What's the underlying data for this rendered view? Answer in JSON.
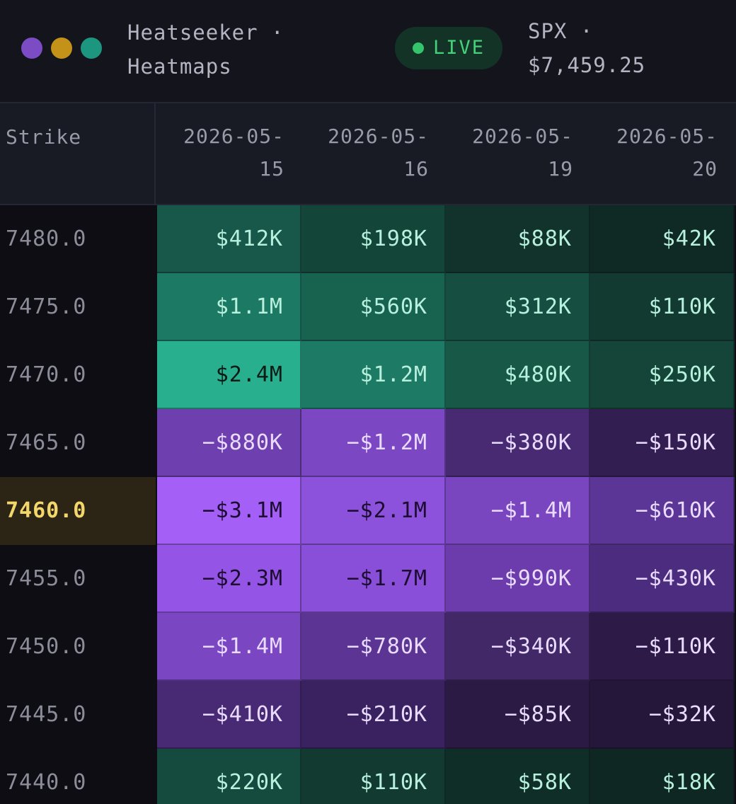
{
  "header": {
    "window_dots": [
      {
        "name": "purple-window-dot",
        "color": "#7c4cc4"
      },
      {
        "name": "yellow-window-dot",
        "color": "#c49218"
      },
      {
        "name": "teal-window-dot",
        "color": "#1d9680"
      }
    ],
    "title_line1": "Heatseeker ·",
    "title_line2": "Heatmaps",
    "live_label": "LIVE",
    "ticker_line1": "SPX ·",
    "ticker_line2": "$7,459.25"
  },
  "table": {
    "strike_header": "Strike",
    "dates": [
      {
        "line1": "2026-05-",
        "line2": "15"
      },
      {
        "line1": "2026-05-",
        "line2": "16"
      },
      {
        "line1": "2026-05-",
        "line2": "19"
      },
      {
        "line1": "2026-05-",
        "line2": "20"
      }
    ],
    "current_strike": "7460.0",
    "rows": [
      {
        "strike": "7480.0",
        "cells": [
          {
            "text": "$412K",
            "bg": "#17584a",
            "fg": "#b8f0de"
          },
          {
            "text": "$198K",
            "bg": "#144539",
            "fg": "#b8f0de"
          },
          {
            "text": "$88K",
            "bg": "#11332b",
            "fg": "#b8f0de"
          },
          {
            "text": "$42K",
            "bg": "#0f2a24",
            "fg": "#b8f0de"
          }
        ]
      },
      {
        "strike": "7475.0",
        "cells": [
          {
            "text": "$1.1M",
            "bg": "#1c7a64",
            "fg": "#b8f0de"
          },
          {
            "text": "$560K",
            "bg": "#186250",
            "fg": "#b8f0de"
          },
          {
            "text": "$312K",
            "bg": "#164f42",
            "fg": "#b8f0de"
          },
          {
            "text": "$110K",
            "bg": "#133a31",
            "fg": "#b8f0de"
          }
        ]
      },
      {
        "strike": "7470.0",
        "cells": [
          {
            "text": "$2.4M",
            "bg": "#28af8e",
            "fg": "#0a1a15"
          },
          {
            "text": "$1.2M",
            "bg": "#1d7a64",
            "fg": "#b8f0de"
          },
          {
            "text": "$480K",
            "bg": "#175846",
            "fg": "#b8f0de"
          },
          {
            "text": "$250K",
            "bg": "#154538",
            "fg": "#b8f0de"
          }
        ]
      },
      {
        "strike": "7465.0",
        "cells": [
          {
            "text": "−$880K",
            "bg": "#6e3fae",
            "fg": "#e9dcff"
          },
          {
            "text": "−$1.2M",
            "bg": "#7c47c2",
            "fg": "#e9dcff"
          },
          {
            "text": "−$380K",
            "bg": "#472a72",
            "fg": "#e9dcff"
          },
          {
            "text": "−$150K",
            "bg": "#321e50",
            "fg": "#e9dcff"
          }
        ]
      },
      {
        "strike": "7460.0",
        "cells": [
          {
            "text": "−$3.1M",
            "bg": "#a35ff6",
            "fg": "#1b0c30"
          },
          {
            "text": "−$2.1M",
            "bg": "#8c52dc",
            "fg": "#1b0c30"
          },
          {
            "text": "−$1.4M",
            "bg": "#7a46c0",
            "fg": "#e9dcff"
          },
          {
            "text": "−$610K",
            "bg": "#5c3696",
            "fg": "#e9dcff"
          }
        ]
      },
      {
        "strike": "7455.0",
        "cells": [
          {
            "text": "−$2.3M",
            "bg": "#9455e6",
            "fg": "#1b0c30"
          },
          {
            "text": "−$1.7M",
            "bg": "#8a4fd8",
            "fg": "#1b0c30"
          },
          {
            "text": "−$990K",
            "bg": "#6c3cac",
            "fg": "#e9dcff"
          },
          {
            "text": "−$430K",
            "bg": "#4c2c7e",
            "fg": "#e9dcff"
          }
        ]
      },
      {
        "strike": "7450.0",
        "cells": [
          {
            "text": "−$1.4M",
            "bg": "#7a46c2",
            "fg": "#e9dcff"
          },
          {
            "text": "−$780K",
            "bg": "#5c3594",
            "fg": "#e9dcff"
          },
          {
            "text": "−$340K",
            "bg": "#432868",
            "fg": "#e9dcff"
          },
          {
            "text": "−$110K",
            "bg": "#2d1a46",
            "fg": "#e9dcff"
          }
        ]
      },
      {
        "strike": "7445.0",
        "cells": [
          {
            "text": "−$410K",
            "bg": "#482a74",
            "fg": "#e9dcff"
          },
          {
            "text": "−$210K",
            "bg": "#3a2260",
            "fg": "#e9dcff"
          },
          {
            "text": "−$85K",
            "bg": "#2b1b44",
            "fg": "#e9dcff"
          },
          {
            "text": "−$32K",
            "bg": "#24173a",
            "fg": "#e9dcff"
          }
        ]
      },
      {
        "strike": "7440.0",
        "cells": [
          {
            "text": "$220K",
            "bg": "#154b3e",
            "fg": "#b8f0de"
          },
          {
            "text": "$110K",
            "bg": "#123a31",
            "fg": "#b8f0de"
          },
          {
            "text": "$58K",
            "bg": "#0f2e27",
            "fg": "#b8f0de"
          },
          {
            "text": "$18K",
            "bg": "#0e2722",
            "fg": "#b8f0de"
          }
        ]
      }
    ]
  }
}
